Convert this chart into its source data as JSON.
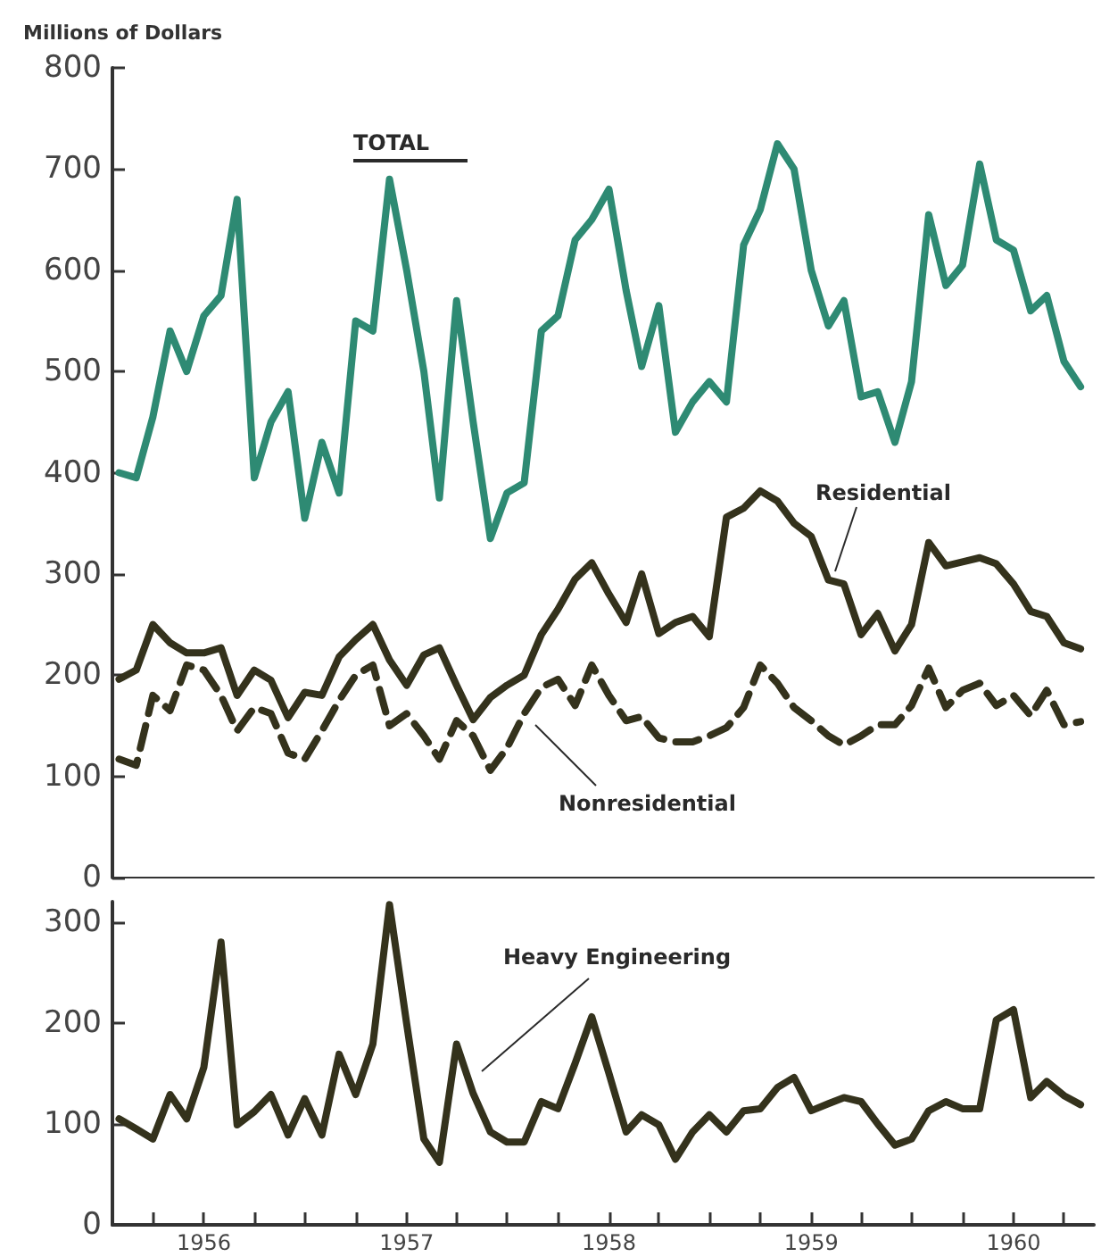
{
  "chart_data": [
    {
      "type": "line",
      "ylabel": "Millions of Dollars",
      "ylim": [
        0,
        800
      ],
      "yticks": [
        0,
        100,
        200,
        300,
        400,
        500,
        600,
        700,
        800
      ],
      "xlim": [
        "1955-07-20",
        "1960-05-25"
      ],
      "tick_labels": "y",
      "marker": "none",
      "x": [
        "1955-08",
        "1955-09",
        "1955-10",
        "1955-11",
        "1955-12",
        "1956-01",
        "1956-02",
        "1956-03",
        "1956-04",
        "1956-05",
        "1956-06",
        "1956-07",
        "1956-08",
        "1956-09",
        "1956-10",
        "1956-11",
        "1956-12",
        "1957-01",
        "1957-02",
        "1957-03",
        "1957-04",
        "1957-05",
        "1957-06",
        "1957-07",
        "1957-08",
        "1957-09",
        "1957-10",
        "1957-11",
        "1957-12",
        "1958-01",
        "1958-02",
        "1958-03",
        "1958-04",
        "1958-05",
        "1958-06",
        "1958-07",
        "1958-08",
        "1958-09",
        "1958-10",
        "1958-11",
        "1958-12",
        "1959-01",
        "1959-02",
        "1959-03",
        "1959-04",
        "1959-05",
        "1959-06",
        "1959-07",
        "1959-08",
        "1959-09",
        "1959-10",
        "1959-11",
        "1959-12",
        "1960-01",
        "1960-02",
        "1960-03",
        "1960-04",
        "1960-05"
      ],
      "series": [
        {
          "name": "TOTAL",
          "color": "#2e8a73",
          "line_style": "solid",
          "values": [
            400,
            395,
            455,
            540,
            500,
            555,
            575,
            670,
            395,
            450,
            480,
            355,
            430,
            380,
            550,
            540,
            690,
            600,
            500,
            375,
            570,
            450,
            335,
            380,
            390,
            540,
            555,
            630,
            650,
            680,
            580,
            505,
            565,
            440,
            470,
            490,
            470,
            625,
            660,
            725,
            700,
            600,
            545,
            570,
            475,
            480,
            430,
            490,
            655,
            585,
            605,
            705,
            630,
            620,
            560,
            575,
            510,
            485
          ]
        },
        {
          "name": "Residential",
          "color": "#34321c",
          "line_style": "solid",
          "values": [
            196,
            205,
            250,
            232,
            222,
            222,
            227,
            180,
            205,
            195,
            158,
            183,
            180,
            218,
            235,
            250,
            215,
            190,
            220,
            227,
            190,
            156,
            178,
            190,
            200,
            240,
            265,
            295,
            311,
            280,
            252,
            300,
            241,
            252,
            258,
            238,
            356,
            365,
            382,
            372,
            350,
            337,
            294,
            290,
            240,
            261,
            224,
            250,
            331,
            308,
            312,
            316,
            310,
            290,
            263,
            258,
            232,
            226
          ]
        },
        {
          "name": "Nonresidential",
          "color": "#34321c",
          "line_style": "dashed",
          "values": [
            117,
            111,
            180,
            165,
            210,
            205,
            180,
            145,
            168,
            162,
            123,
            117,
            145,
            175,
            200,
            210,
            150,
            162,
            140,
            117,
            155,
            140,
            106,
            128,
            162,
            188,
            196,
            170,
            210,
            180,
            155,
            159,
            138,
            134,
            134,
            140,
            148,
            168,
            210,
            192,
            168,
            155,
            140,
            131,
            140,
            151,
            151,
            170,
            207,
            168,
            185,
            192,
            170,
            180,
            160,
            185,
            151,
            154
          ]
        }
      ]
    },
    {
      "type": "line",
      "ylim": [
        0,
        320
      ],
      "yticks": [
        0,
        100,
        200,
        300
      ],
      "xlim": [
        "1955-07-20",
        "1960-05-25"
      ],
      "marker": "none",
      "xticks": [
        {
          "value": "1955-10",
          "label": null
        },
        {
          "value": "1956-01",
          "label": "1956"
        },
        {
          "value": "1956-04",
          "label": null
        },
        {
          "value": "1956-07",
          "label": null
        },
        {
          "value": "1956-10",
          "label": null
        },
        {
          "value": "1957-01",
          "label": "1957"
        },
        {
          "value": "1957-04",
          "label": null
        },
        {
          "value": "1957-07",
          "label": null
        },
        {
          "value": "1957-10",
          "label": null
        },
        {
          "value": "1958-01",
          "label": "1958"
        },
        {
          "value": "1958-04",
          "label": null
        },
        {
          "value": "1958-07",
          "label": null
        },
        {
          "value": "1958-10",
          "label": null
        },
        {
          "value": "1959-01",
          "label": "1959"
        },
        {
          "value": "1959-04",
          "label": null
        },
        {
          "value": "1959-07",
          "label": null
        },
        {
          "value": "1959-10",
          "label": null
        },
        {
          "value": "1960-01",
          "label": "1960"
        },
        {
          "value": "1960-04",
          "label": null
        }
      ],
      "x": [
        "1955-08",
        "1955-09",
        "1955-10",
        "1955-11",
        "1955-12",
        "1956-01",
        "1956-02",
        "1956-03",
        "1956-04",
        "1956-05",
        "1956-06",
        "1956-07",
        "1956-08",
        "1956-09",
        "1956-10",
        "1956-11",
        "1956-12",
        "1957-01",
        "1957-02",
        "1957-03",
        "1957-04",
        "1957-05",
        "1957-06",
        "1957-07",
        "1957-08",
        "1957-09",
        "1957-10",
        "1957-11",
        "1957-12",
        "1958-01",
        "1958-02",
        "1958-03",
        "1958-04",
        "1958-05",
        "1958-06",
        "1958-07",
        "1958-08",
        "1958-09",
        "1958-10",
        "1958-11",
        "1958-12",
        "1959-01",
        "1959-02",
        "1959-03",
        "1959-04",
        "1959-05",
        "1959-06",
        "1959-07",
        "1959-08",
        "1959-09",
        "1959-10",
        "1959-11",
        "1959-12",
        "1960-01",
        "1960-02",
        "1960-03",
        "1960-04",
        "1960-05"
      ],
      "series": [
        {
          "name": "Heavy Engineering",
          "color": "#34321c",
          "line_style": "solid",
          "values": [
            105,
            95,
            85,
            129,
            105,
            156,
            280,
            99,
            112,
            129,
            89,
            125,
            89,
            169,
            129,
            179,
            317,
            199,
            85,
            62,
            179,
            130,
            92,
            82,
            82,
            122,
            115,
            160,
            206,
            150,
            92,
            109,
            99,
            65,
            92,
            109,
            92,
            113,
            115,
            136,
            146,
            113,
            120,
            126,
            122,
            100,
            79,
            85,
            113,
            122,
            115,
            115,
            203,
            213,
            126,
            142,
            128,
            119
          ]
        }
      ]
    }
  ]
}
